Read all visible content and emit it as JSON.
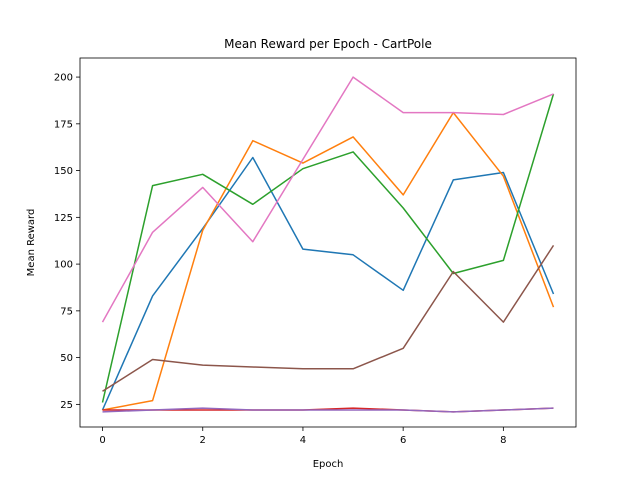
{
  "chart_data": {
    "type": "line",
    "title": "Mean Reward per Epoch - CartPole",
    "xlabel": "Epoch",
    "ylabel": "Mean Reward",
    "xlim": [
      -0.45,
      9.45
    ],
    "ylim": [
      12.9,
      210.2
    ],
    "xticks": [
      0,
      2,
      4,
      6,
      8
    ],
    "yticks": [
      25,
      50,
      75,
      100,
      125,
      150,
      175,
      200
    ],
    "grid": false,
    "x": [
      0,
      1,
      2,
      3,
      4,
      5,
      6,
      7,
      8,
      9
    ],
    "series": [
      {
        "color": "#1f77b4",
        "values": [
          22,
          83,
          119,
          157,
          108,
          105,
          86,
          145,
          149,
          84
        ]
      },
      {
        "color": "#ff7f0e",
        "values": [
          22,
          27,
          118,
          166,
          154,
          168,
          137,
          181,
          147,
          77
        ]
      },
      {
        "color": "#2ca02c",
        "values": [
          26,
          142,
          148,
          132,
          151,
          160,
          130,
          95,
          102,
          191
        ]
      },
      {
        "color": "#d62728",
        "values": [
          22,
          22,
          22,
          22,
          22,
          23,
          22,
          21,
          22,
          23
        ]
      },
      {
        "color": "#9467bd",
        "values": [
          21,
          22,
          23,
          22,
          22,
          22,
          22,
          21,
          22,
          23
        ]
      },
      {
        "color": "#8c564b",
        "values": [
          32,
          49,
          46,
          45,
          44,
          44,
          55,
          96,
          69,
          110
        ]
      },
      {
        "color": "#e377c2",
        "values": [
          69,
          117,
          141,
          112,
          156,
          200,
          181,
          181,
          180,
          191
        ]
      }
    ]
  }
}
